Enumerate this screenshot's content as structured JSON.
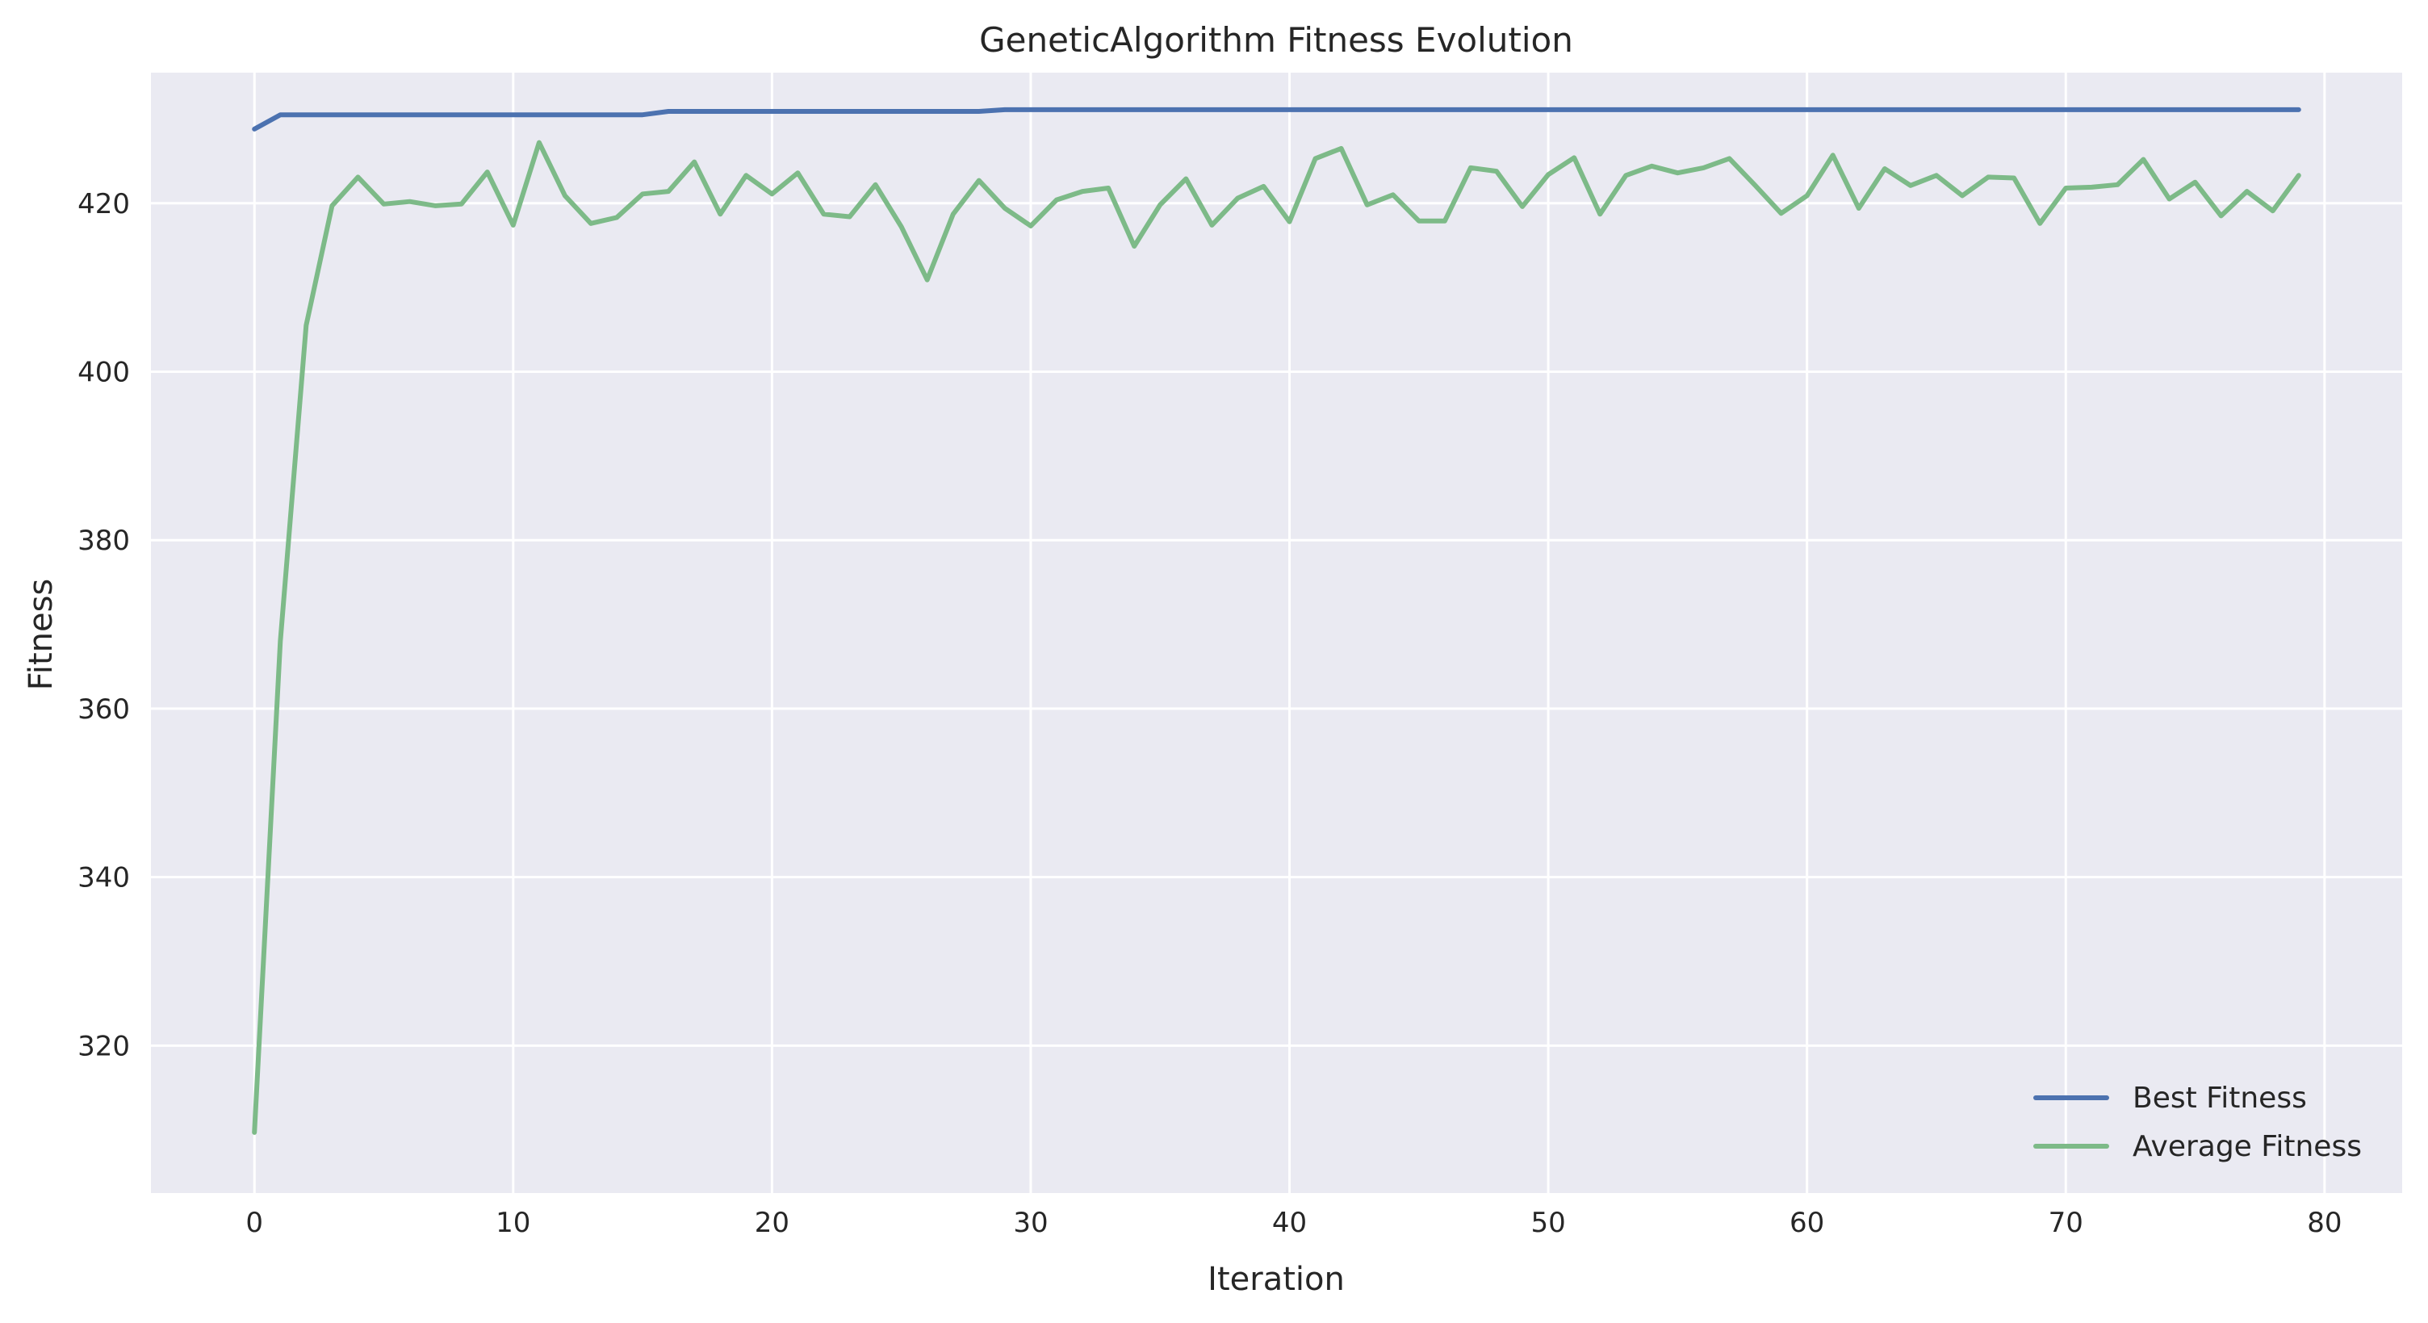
{
  "chart_data": {
    "type": "line",
    "title": "GeneticAlgorithm Fitness Evolution",
    "xlabel": "Iteration",
    "ylabel": "Fitness",
    "xlim": [
      -4,
      83
    ],
    "ylim": [
      302.5,
      435.5
    ],
    "xticks": [
      0,
      10,
      20,
      30,
      40,
      50,
      60,
      70,
      80
    ],
    "yticks": [
      320,
      340,
      360,
      380,
      400,
      420
    ],
    "grid": true,
    "legend_position": "bottom-right",
    "series": [
      {
        "name": "Best Fitness",
        "color": "#4c72b0",
        "values": [
          428.8,
          430.5,
          430.5,
          430.5,
          430.5,
          430.5,
          430.5,
          430.5,
          430.5,
          430.5,
          430.5,
          430.5,
          430.5,
          430.5,
          430.5,
          430.5,
          430.9,
          430.9,
          430.9,
          430.9,
          430.9,
          430.9,
          430.9,
          430.9,
          430.9,
          430.9,
          430.9,
          430.9,
          430.9,
          431.1,
          431.1,
          431.1,
          431.1,
          431.1,
          431.1,
          431.1,
          431.1,
          431.1,
          431.1,
          431.1,
          431.1,
          431.1,
          431.1,
          431.1,
          431.1,
          431.1,
          431.1,
          431.1,
          431.1,
          431.1,
          431.1,
          431.1,
          431.1,
          431.1,
          431.1,
          431.1,
          431.1,
          431.1,
          431.1,
          431.1,
          431.1,
          431.1,
          431.1,
          431.1,
          431.1,
          431.1,
          431.1,
          431.1,
          431.1,
          431.1,
          431.1,
          431.1,
          431.1,
          431.1,
          431.1,
          431.1,
          431.1,
          431.1,
          431.1,
          431.1
        ]
      },
      {
        "name": "Average Fitness",
        "color": "#7dba88",
        "values": [
          309.7,
          368.0,
          405.5,
          419.7,
          423.1,
          419.9,
          420.2,
          419.7,
          419.9,
          423.7,
          417.4,
          427.2,
          420.9,
          417.6,
          418.3,
          421.1,
          421.4,
          424.9,
          418.7,
          423.3,
          421.1,
          423.6,
          418.7,
          418.4,
          422.2,
          417.2,
          410.9,
          418.7,
          422.7,
          419.4,
          417.3,
          420.4,
          421.4,
          421.8,
          414.9,
          419.8,
          422.9,
          417.4,
          420.6,
          422.0,
          417.8,
          425.3,
          426.5,
          419.8,
          421.0,
          417.9,
          417.9,
          424.2,
          423.8,
          419.6,
          423.4,
          425.4,
          418.7,
          423.3,
          424.4,
          423.6,
          424.2,
          425.3,
          422.1,
          418.8,
          420.9,
          425.7,
          419.4,
          424.1,
          422.1,
          423.3,
          420.9,
          423.1,
          423.0,
          417.6,
          421.8,
          421.9,
          422.2,
          425.2,
          420.5,
          422.5,
          418.5,
          421.4,
          419.1,
          423.3
        ]
      }
    ]
  }
}
